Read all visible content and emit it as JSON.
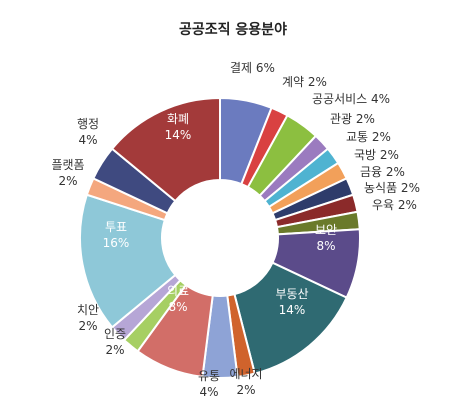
{
  "chart_data": {
    "type": "pie",
    "donut": true,
    "title": "공공조직 응용분야",
    "unit": "%",
    "start_angle_deg": 0,
    "direction": "clockwise",
    "slices": [
      {
        "name": "결제",
        "value": 6,
        "color": "#6b7bbf",
        "label": "결제 6%"
      },
      {
        "name": "계약",
        "value": 2,
        "color": "#d94141",
        "label": "계약 2%"
      },
      {
        "name": "공공서비스",
        "value": 4,
        "color": "#8cbf40",
        "label": "공공서비스 4%"
      },
      {
        "name": "관광",
        "value": 2,
        "color": "#9b7bbf",
        "label": "관광 2%"
      },
      {
        "name": "교통",
        "value": 2,
        "color": "#4fb3d1",
        "label": "교통 2%"
      },
      {
        "name": "국방",
        "value": 2,
        "color": "#f2a05a",
        "label": "국방 2%"
      },
      {
        "name": "금융",
        "value": 2,
        "color": "#2e3c6b",
        "label": "금융 2%"
      },
      {
        "name": "농식품",
        "value": 2,
        "color": "#8b2a2a",
        "label": "농식품 2%"
      },
      {
        "name": "우육",
        "value": 2,
        "color": "#6a7a2a",
        "label": "우육 2%"
      },
      {
        "name": "보안",
        "value": 8,
        "color": "#5b4b8a",
        "label": "보안",
        "pct": "8%"
      },
      {
        "name": "부동산",
        "value": 14,
        "color": "#2f6a72",
        "label": "부동산",
        "pct": "14%"
      },
      {
        "name": "에너지",
        "value": 2,
        "color": "#d0632c",
        "label": "에너지",
        "pct": "2%"
      },
      {
        "name": "유통",
        "value": 4,
        "color": "#8ea3d6",
        "label": "유통",
        "pct": "4%"
      },
      {
        "name": "의료",
        "value": 8,
        "color": "#d26e68",
        "label": "의료",
        "pct": "8%"
      },
      {
        "name": "인증",
        "value": 2,
        "color": "#a6cf63",
        "label": "인증",
        "pct": "2%"
      },
      {
        "name": "치안",
        "value": 2,
        "color": "#b6a6d6",
        "label": "치안",
        "pct": "2%"
      },
      {
        "name": "투표",
        "value": 16,
        "color": "#8ec8d8",
        "label": "투표",
        "pct": "16%"
      },
      {
        "name": "플랫폼",
        "value": 2,
        "color": "#f4a77e",
        "label": "플랫폼",
        "pct": "2%"
      },
      {
        "name": "행정",
        "value": 4,
        "color": "#3f4a80",
        "label": "행정",
        "pct": "4%"
      },
      {
        "name": "화폐",
        "value": 14,
        "color": "#a33a3a",
        "label": "화폐",
        "pct": "14%"
      }
    ]
  }
}
